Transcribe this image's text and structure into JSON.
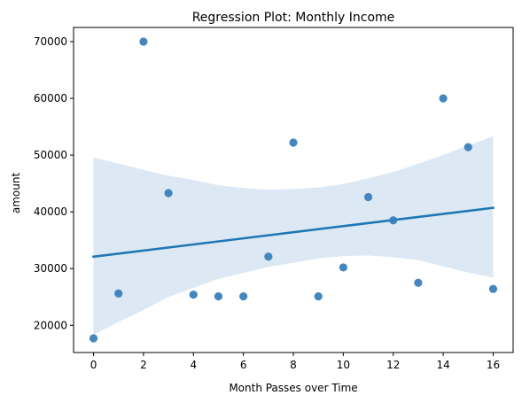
{
  "chart_data": {
    "type": "scatter",
    "title": "Regression Plot: Monthly Income",
    "xlabel": "Month Passes over Time",
    "ylabel": "amount",
    "xlim": [
      -0.8,
      16.8
    ],
    "ylim": [
      15200,
      72500
    ],
    "x_ticks": [
      0,
      2,
      4,
      6,
      8,
      10,
      12,
      14,
      16
    ],
    "y_ticks": [
      20000,
      30000,
      40000,
      50000,
      60000,
      70000
    ],
    "grid": false,
    "legend": "none",
    "points": {
      "x": [
        0,
        1,
        2,
        3,
        4,
        5,
        6,
        7,
        8,
        9,
        10,
        11,
        12,
        13,
        14,
        15,
        16
      ],
      "y": [
        17700,
        25600,
        70000,
        43300,
        25400,
        25100,
        25100,
        32100,
        52200,
        25100,
        30200,
        42600,
        38500,
        27500,
        60000,
        51400,
        26400
      ]
    },
    "regression_line": {
      "x": [
        0,
        16
      ],
      "y": [
        32100,
        40700
      ]
    },
    "confidence_band": {
      "x": [
        0,
        1,
        2,
        3,
        4,
        5,
        6,
        7,
        8,
        9,
        10,
        11,
        12,
        13,
        14,
        15,
        16
      ],
      "upper": [
        49600,
        48500,
        47400,
        46400,
        45600,
        44700,
        44200,
        43900,
        44000,
        44300,
        44900,
        45900,
        47000,
        48500,
        50000,
        51700,
        53300
      ],
      "lower": [
        18300,
        20600,
        22700,
        25000,
        26600,
        28200,
        29200,
        30300,
        31000,
        31800,
        32200,
        32300,
        32000,
        31500,
        30400,
        29300,
        28400
      ]
    },
    "colors": {
      "points": "#3a7fba",
      "line": "#1f77b4",
      "band": "#d6e4f1"
    }
  }
}
